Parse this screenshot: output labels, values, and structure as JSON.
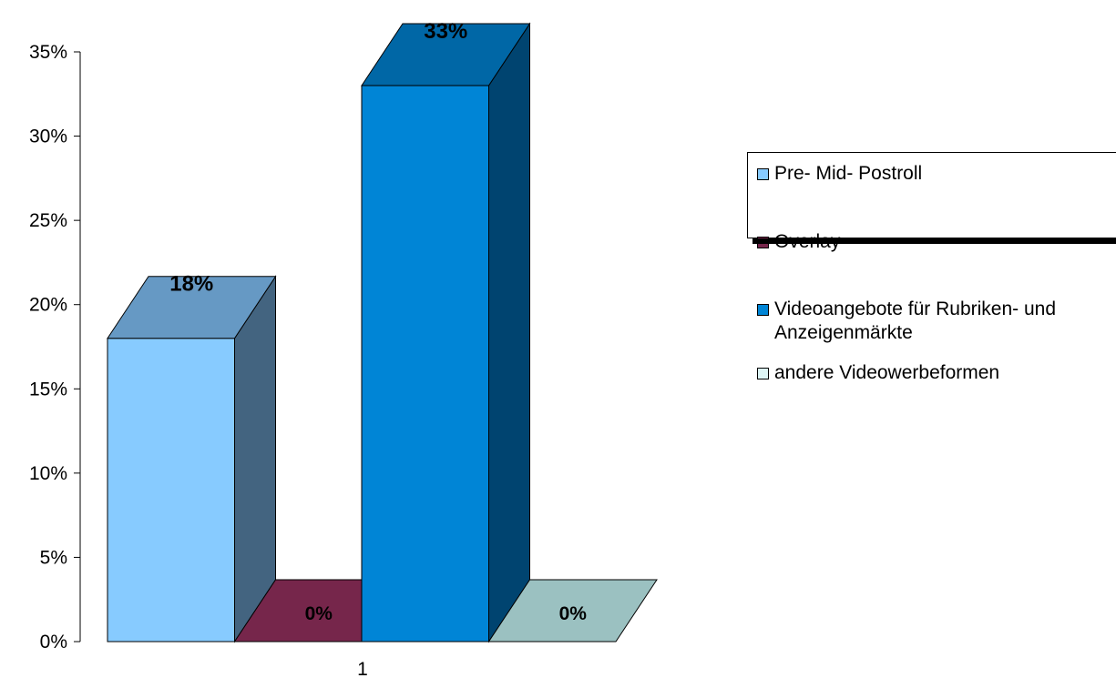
{
  "chart_data": {
    "type": "bar",
    "categories": [
      "1"
    ],
    "series": [
      {
        "name": "Pre- Mid- Postroll",
        "values": [
          18
        ],
        "label": "18%",
        "color": "#87CBFF",
        "top_color": "#6699C4",
        "side_color": "#436480"
      },
      {
        "name": "Overlay",
        "values": [
          0
        ],
        "label": "0%",
        "color": "#76264B",
        "top_color": "#76264B",
        "side_color": "#4E1931"
      },
      {
        "name": "Videoangebote für Rubriken- und Anzeigenmärkte",
        "values": [
          33
        ],
        "label": "33%",
        "color": "#0085D6",
        "top_color": "#0067A6",
        "side_color": "#004470"
      },
      {
        "name": "andere Videowerbeformen",
        "values": [
          0
        ],
        "label": "0%",
        "color": "#9BC1C1",
        "top_color": "#9BC1C1",
        "side_color": "#6F9090"
      }
    ],
    "ylim": [
      0,
      35
    ],
    "yticks": [
      0,
      5,
      10,
      15,
      20,
      25,
      30,
      35
    ],
    "ytick_labels": [
      "0%",
      "5%",
      "10%",
      "15%",
      "20%",
      "25%",
      "30%",
      "35%"
    ],
    "xtick_labels": [
      "1"
    ],
    "legend": {
      "position": "right",
      "items": [
        {
          "label": "Pre- Mid- Postroll",
          "color": "#87CBFF"
        },
        {
          "label": "Overlay",
          "color": "#76264B"
        },
        {
          "label": "Videoangebote für Rubriken- und",
          "label2": "Anzeigenmärkte",
          "color": "#0085D6"
        },
        {
          "label": "andere Videowerbeformen",
          "color": "#DDF5F5"
        }
      ]
    },
    "grid": false,
    "style": "3d-column"
  }
}
